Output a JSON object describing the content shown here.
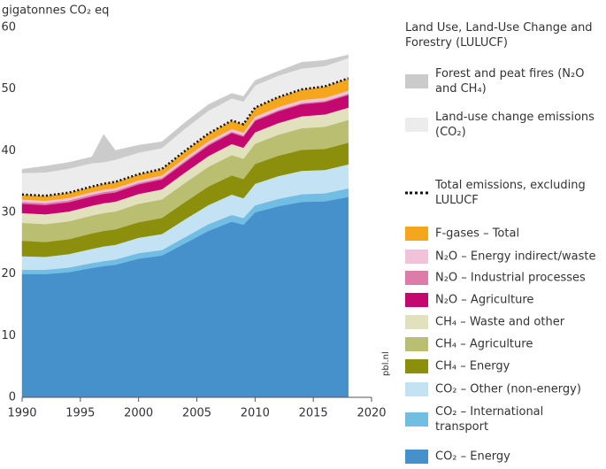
{
  "chart_data": {
    "type": "area",
    "y_label": "gigatonnes CO₂ eq",
    "source": "pbl.nl",
    "x": [
      1990,
      1992,
      1994,
      1996,
      1997,
      1998,
      2000,
      2002,
      2004,
      2006,
      2008,
      2009,
      2010,
      2012,
      2014,
      2016,
      2018
    ],
    "xlim": [
      1990,
      2020
    ],
    "xticks": [
      1990,
      1995,
      2000,
      2005,
      2010,
      2015,
      2020
    ],
    "ylim": [
      0,
      60
    ],
    "yticks": [
      0,
      10,
      20,
      30,
      40,
      50,
      60
    ],
    "grid": false,
    "series": [
      {
        "name": "CO₂ – Energy",
        "color": "#4690cc",
        "values": [
          20,
          20,
          20.3,
          21,
          21.3,
          21.5,
          22.5,
          23,
          25,
          27,
          28.5,
          28,
          30,
          31,
          31.7,
          31.8,
          32.5
        ]
      },
      {
        "name": "CO₂ – International transport",
        "color": "#72bde4",
        "values": [
          0.7,
          0.7,
          0.75,
          0.8,
          0.8,
          0.85,
          0.9,
          0.9,
          1,
          1.1,
          1.1,
          1.1,
          1.15,
          1.2,
          1.25,
          1.3,
          1.4
        ]
      },
      {
        "name": "CO₂ – Other (non-energy)",
        "color": "#c3e2f3",
        "values": [
          2.2,
          2.1,
          2.2,
          2.3,
          2.4,
          2.4,
          2.5,
          2.6,
          2.9,
          3.1,
          3.3,
          3.2,
          3.5,
          3.7,
          3.8,
          3.8,
          3.9
        ]
      },
      {
        "name": "CH₄ – Energy",
        "color": "#8c8f0c",
        "values": [
          2.5,
          2.4,
          2.4,
          2.5,
          2.5,
          2.5,
          2.5,
          2.6,
          2.8,
          3,
          3.1,
          3.1,
          3.2,
          3.3,
          3.4,
          3.4,
          3.5
        ]
      },
      {
        "name": "CH₄ – Agriculture",
        "color": "#b9be70",
        "values": [
          2.9,
          2.9,
          2.9,
          2.9,
          2.9,
          2.9,
          3,
          3,
          3.1,
          3.2,
          3.3,
          3.3,
          3.3,
          3.4,
          3.5,
          3.6,
          3.7
        ]
      },
      {
        "name": "CH₄ – Waste and other",
        "color": "#e1e1bd",
        "values": [
          1.6,
          1.6,
          1.6,
          1.6,
          1.6,
          1.6,
          1.6,
          1.65,
          1.7,
          1.75,
          1.8,
          1.8,
          1.85,
          1.9,
          1.95,
          2,
          2
        ]
      },
      {
        "name": "N₂O – Agriculture",
        "color": "#c5086f",
        "values": [
          1.5,
          1.5,
          1.5,
          1.5,
          1.5,
          1.5,
          1.55,
          1.6,
          1.65,
          1.7,
          1.8,
          1.8,
          1.85,
          1.9,
          1.95,
          2,
          2.05
        ]
      },
      {
        "name": "N₂O – Industrial processes",
        "color": "#dd7ca8",
        "values": [
          0.3,
          0.3,
          0.3,
          0.3,
          0.3,
          0.3,
          0.25,
          0.25,
          0.25,
          0.25,
          0.2,
          0.2,
          0.2,
          0.2,
          0.2,
          0.2,
          0.2
        ]
      },
      {
        "name": "N₂O – Energy indirect/waste",
        "color": "#f1c2da",
        "values": [
          0.4,
          0.4,
          0.4,
          0.4,
          0.4,
          0.4,
          0.4,
          0.4,
          0.45,
          0.45,
          0.45,
          0.45,
          0.5,
          0.5,
          0.5,
          0.5,
          0.5
        ]
      },
      {
        "name": "F-gases – Total",
        "color": "#f4a61c",
        "values": [
          0.8,
          0.8,
          0.85,
          0.9,
          0.95,
          1,
          1,
          1.05,
          1.15,
          1.25,
          1.35,
          1.35,
          1.45,
          1.6,
          1.7,
          1.85,
          2
        ]
      }
    ],
    "total": {
      "name": "Total emissions, excluding LULUCF",
      "color": "#111111",
      "values": [
        32.9,
        32.7,
        33.2,
        34.2,
        34.65,
        34.95,
        36.2,
        37.05,
        40,
        42.8,
        44.9,
        44.3,
        47,
        48.7,
        49.95,
        50.45,
        51.75
      ]
    },
    "lulucf_title": "Land Use, Land-Use Change and Forestry (LULUCF)",
    "lulucf_series": [
      {
        "name": "Land-use change emissions (CO₂)",
        "color": "#ececec",
        "values": [
          3.5,
          3.8,
          3.9,
          3.8,
          3.5,
          3.6,
          3.5,
          3.4,
          3.6,
          3.7,
          3.6,
          3.7,
          3.6,
          3.5,
          3.4,
          3.3,
          3.3
        ]
      },
      {
        "name": "Forest and peat fires (N₂O and CH₄)",
        "color": "#cbcbcb",
        "values": [
          0.6,
          1,
          1,
          1,
          4.5,
          1.5,
          1.2,
          1,
          1,
          1,
          0.8,
          0.8,
          0.8,
          0.7,
          1,
          0.9,
          0.5
        ]
      }
    ]
  }
}
